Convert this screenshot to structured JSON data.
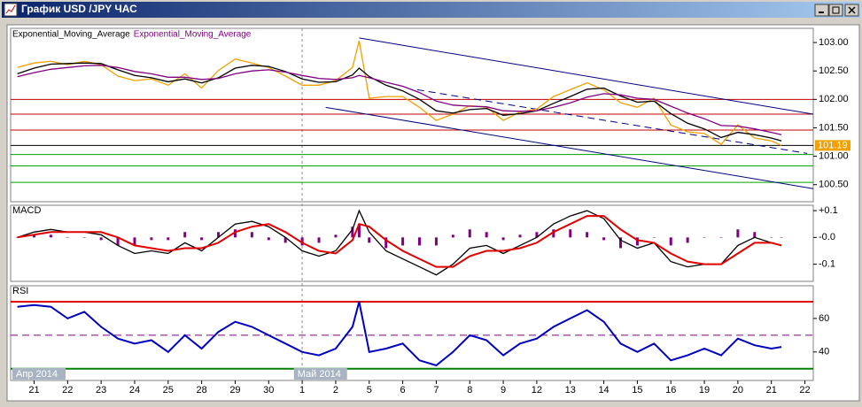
{
  "window": {
    "title": "График USD /JPY ЧАС"
  },
  "chart_data": [
    {
      "type": "line",
      "x": [
        -0.5,
        0,
        0.5,
        1,
        1.5,
        2,
        2.5,
        3,
        3.5,
        4,
        4.5,
        5,
        5.5,
        6,
        6.5,
        7,
        7.5,
        8,
        8.5,
        9,
        9.5,
        9.7,
        10,
        10.5,
        11,
        11.5,
        12,
        12.5,
        13,
        13.5,
        14,
        14.5,
        15,
        15.5,
        16,
        16.5,
        17,
        17.5,
        18,
        18.5,
        19,
        19.5,
        20,
        20.5,
        21,
        21.5,
        22,
        22.3
      ],
      "series": [
        {
          "color": "#f0a000",
          "values": [
            102.56,
            102.64,
            102.67,
            102.61,
            102.67,
            102.61,
            102.41,
            102.33,
            102.36,
            102.25,
            102.45,
            102.2,
            102.51,
            102.71,
            102.64,
            102.56,
            102.41,
            102.25,
            102.25,
            102.33,
            102.56,
            103.03,
            102.02,
            102.05,
            102.05,
            101.86,
            101.63,
            101.74,
            101.89,
            101.86,
            101.63,
            101.78,
            101.83,
            102.05,
            102.17,
            102.29,
            102.17,
            101.94,
            101.86,
            102.02,
            101.55,
            101.43,
            101.4,
            101.21,
            101.55,
            101.32,
            101.27,
            101.19
          ]
        },
        {
          "name": "Exponential_Moving_Average",
          "color": "#000000",
          "values": [
            102.45,
            102.55,
            102.62,
            102.63,
            102.64,
            102.63,
            102.52,
            102.42,
            102.38,
            102.31,
            102.36,
            102.29,
            102.38,
            102.55,
            102.6,
            102.58,
            102.49,
            102.36,
            102.3,
            102.31,
            102.43,
            102.55,
            102.4,
            102.25,
            102.15,
            102.0,
            101.8,
            101.76,
            101.82,
            101.84,
            101.72,
            101.75,
            101.8,
            101.93,
            102.05,
            102.18,
            102.2,
            102.06,
            101.95,
            101.97,
            101.75,
            101.58,
            101.48,
            101.33,
            101.42,
            101.38,
            101.32,
            101.27
          ]
        },
        {
          "name": "Exponential_Moving_Average",
          "color": "#800080",
          "values": [
            102.4,
            102.47,
            102.53,
            102.56,
            102.59,
            102.6,
            102.56,
            102.49,
            102.45,
            102.39,
            102.39,
            102.35,
            102.37,
            102.45,
            102.5,
            102.52,
            102.48,
            102.42,
            102.37,
            102.35,
            102.38,
            102.42,
            102.38,
            102.3,
            102.23,
            102.12,
            101.97,
            101.9,
            101.88,
            101.87,
            101.8,
            101.79,
            101.8,
            101.86,
            101.94,
            102.04,
            102.1,
            102.08,
            102.02,
            102.0,
            101.88,
            101.76,
            101.66,
            101.54,
            101.53,
            101.48,
            101.42,
            101.38
          ]
        }
      ],
      "xlim": [
        -0.7,
        23.25
      ],
      "ylim": [
        100.2,
        103.25
      ],
      "yticks": [
        {
          "value": 103,
          "label": "103.00"
        },
        {
          "value": 102.5,
          "label": "102.50"
        },
        {
          "value": 102,
          "label": "102.00"
        },
        {
          "value": 101.5,
          "label": "101.50"
        },
        {
          "value": 101,
          "label": "101.00"
        },
        {
          "value": 100.5,
          "label": "100.50"
        }
      ],
      "hlines": [
        {
          "value": 102.0,
          "color": "#c00000"
        },
        {
          "value": 101.74,
          "color": "#c00000"
        },
        {
          "value": 101.46,
          "color": "#c00000"
        },
        {
          "value": 101.19,
          "color": "#000000"
        },
        {
          "value": 101.03,
          "color": "#00a000"
        },
        {
          "value": 100.83,
          "color": "#00a000"
        },
        {
          "value": 100.54,
          "color": "#00a000"
        }
      ],
      "trend_lines": [
        {
          "x": [
            9.7,
            23.25
          ],
          "values": [
            103.08,
            101.74
          ],
          "color": "#000080"
        },
        {
          "x": [
            11.43,
            23.07
          ],
          "values": [
            102.17,
            101.05
          ],
          "color": "#000080",
          "style": "dashed"
        },
        {
          "x": [
            8.7,
            23.25
          ],
          "values": [
            101.86,
            100.43
          ],
          "color": "#000080"
        }
      ],
      "last_price": 101.19
    },
    {
      "type": "line",
      "title": "MACD",
      "x": [
        -0.5,
        0,
        0.5,
        1,
        1.5,
        2,
        2.5,
        3,
        3.5,
        4,
        4.5,
        5,
        5.5,
        6,
        6.5,
        7,
        7.5,
        8,
        8.5,
        9,
        9.5,
        9.7,
        10,
        10.5,
        11,
        11.5,
        12,
        12.5,
        13,
        13.5,
        14,
        14.5,
        15,
        15.5,
        16,
        16.5,
        17,
        17.5,
        18,
        18.5,
        19,
        19.5,
        20,
        20.5,
        21,
        21.5,
        22,
        22.3
      ],
      "series": [
        {
          "type": "bar",
          "color": "#800080",
          "values": [
            0,
            0.01,
            0.01,
            0,
            0,
            -0.01,
            -0.03,
            -0.03,
            -0.01,
            -0.01,
            0.02,
            -0.01,
            0.02,
            0.03,
            0.02,
            -0.01,
            -0.02,
            -0.03,
            -0.02,
            0.01,
            0.04,
            0.05,
            -0.02,
            -0.04,
            -0.03,
            -0.03,
            -0.03,
            0.01,
            0.03,
            0.02,
            -0.01,
            0.01,
            0.02,
            0.03,
            0.03,
            0.02,
            -0.01,
            -0.04,
            -0.03,
            0,
            -0.03,
            -0.02,
            0,
            0,
            0.03,
            0.02,
            0,
            0
          ]
        },
        {
          "color": "#000000",
          "values": [
            0.0,
            0.02,
            0.03,
            0.02,
            0.02,
            0.01,
            -0.03,
            -0.06,
            -0.05,
            -0.06,
            -0.02,
            -0.05,
            0.0,
            0.05,
            0.06,
            0.04,
            0.0,
            -0.05,
            -0.07,
            -0.05,
            0.03,
            0.1,
            0.02,
            -0.05,
            -0.08,
            -0.11,
            -0.14,
            -0.1,
            -0.04,
            -0.03,
            -0.06,
            -0.03,
            0.0,
            0.05,
            0.08,
            0.1,
            0.07,
            -0.01,
            -0.04,
            -0.02,
            -0.09,
            -0.11,
            -0.1,
            -0.1,
            -0.03,
            0.0,
            -0.02,
            -0.03
          ]
        },
        {
          "color": "#e00000",
          "width": 2,
          "values": [
            0.0,
            0.01,
            0.02,
            0.02,
            0.02,
            0.02,
            0.0,
            -0.03,
            -0.04,
            -0.05,
            -0.04,
            -0.04,
            -0.02,
            0.02,
            0.04,
            0.05,
            0.02,
            -0.02,
            -0.05,
            -0.06,
            -0.01,
            0.05,
            0.04,
            -0.01,
            -0.05,
            -0.08,
            -0.11,
            -0.11,
            -0.07,
            -0.05,
            -0.05,
            -0.04,
            -0.02,
            0.02,
            0.05,
            0.08,
            0.08,
            0.03,
            -0.01,
            -0.02,
            -0.06,
            -0.09,
            -0.1,
            -0.1,
            -0.06,
            -0.02,
            -0.02,
            -0.03
          ]
        }
      ],
      "xlim": [
        -0.7,
        23.25
      ],
      "ylim": [
        -0.164,
        0.12
      ],
      "yticks": [
        {
          "value": 0.1,
          "label": "+0.1"
        },
        {
          "value": 0,
          "label": "-0.0"
        },
        {
          "value": -0.1,
          "label": "-0.1"
        }
      ]
    },
    {
      "type": "line",
      "title": "RSI",
      "x": [
        -0.5,
        0,
        0.5,
        1,
        1.5,
        2,
        2.5,
        3,
        3.5,
        4,
        4.5,
        5,
        5.5,
        6,
        6.5,
        7,
        7.5,
        8,
        8.5,
        9,
        9.5,
        9.7,
        10,
        10.5,
        11,
        11.5,
        12,
        12.5,
        13,
        13.5,
        14,
        14.5,
        15,
        15.5,
        16,
        16.5,
        17,
        17.5,
        18,
        18.5,
        19,
        19.5,
        20,
        20.5,
        21,
        21.5,
        22,
        22.3
      ],
      "series": [
        {
          "color": "#0000c0",
          "width": 2,
          "values": [
            67,
            68,
            67,
            60,
            64,
            55,
            48,
            45,
            47,
            40,
            50,
            42,
            52,
            58,
            55,
            50,
            45,
            40,
            38,
            42,
            55,
            70,
            40,
            42,
            45,
            35,
            32,
            40,
            50,
            47,
            38,
            45,
            48,
            55,
            60,
            65,
            58,
            45,
            40,
            45,
            35,
            38,
            42,
            38,
            48,
            44,
            42,
            43
          ]
        }
      ],
      "xlim": [
        -0.7,
        23.25
      ],
      "ylim": [
        23,
        79.5
      ],
      "yticks": [
        60,
        40
      ],
      "hlines": [
        {
          "value": 70,
          "color": "#e00000",
          "width": 2
        },
        {
          "value": 50,
          "color": "#800080",
          "style": "dashed"
        },
        {
          "value": 30,
          "color": "#008000",
          "width": 2
        }
      ],
      "xticks": [
        {
          "value": 0,
          "label": "21"
        },
        {
          "value": 1,
          "label": "22"
        },
        {
          "value": 2,
          "label": "23"
        },
        {
          "value": 3,
          "label": "24"
        },
        {
          "value": 4,
          "label": "25"
        },
        {
          "value": 5,
          "label": "28"
        },
        {
          "value": 6,
          "label": "29"
        },
        {
          "value": 7,
          "label": "30"
        },
        {
          "value": 8,
          "label": "1"
        },
        {
          "value": 9,
          "label": "2"
        },
        {
          "value": 10,
          "label": "5"
        },
        {
          "value": 11,
          "label": "6"
        },
        {
          "value": 12,
          "label": "7"
        },
        {
          "value": 13,
          "label": "8"
        },
        {
          "value": 14,
          "label": "9"
        },
        {
          "value": 15,
          "label": "12"
        },
        {
          "value": 16,
          "label": "13"
        },
        {
          "value": 17,
          "label": "14"
        },
        {
          "value": 18,
          "label": "15"
        },
        {
          "value": 19,
          "label": "16"
        },
        {
          "value": 20,
          "label": "19"
        },
        {
          "value": 21,
          "label": "20"
        },
        {
          "value": 22,
          "label": "21"
        },
        {
          "value": 23,
          "label": "22"
        }
      ],
      "x_period_labels": [
        {
          "value": -0.7,
          "label": "Апр 2014"
        },
        {
          "value": 7.7,
          "label": "Май 2014"
        }
      ]
    }
  ]
}
